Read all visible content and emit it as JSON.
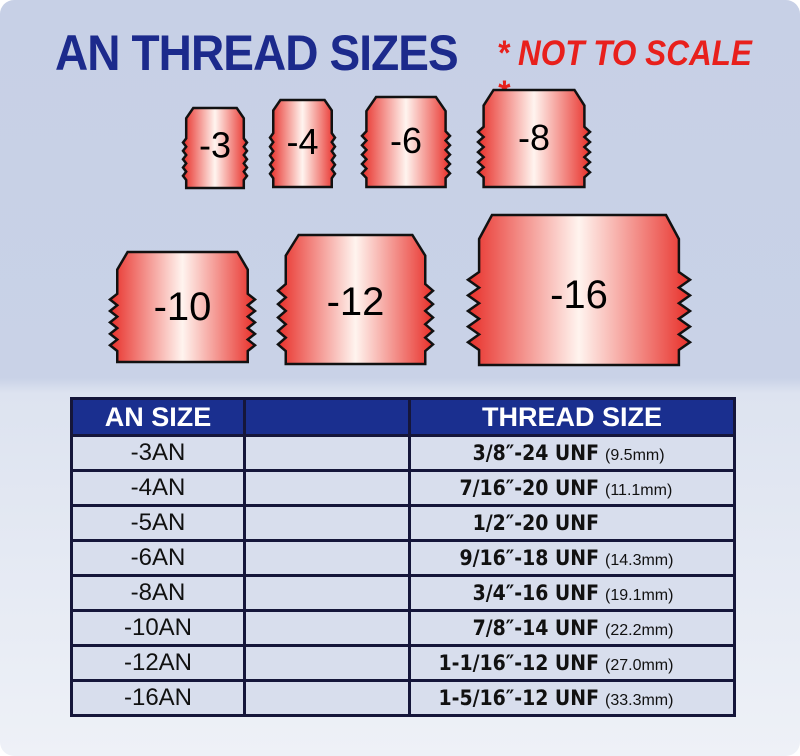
{
  "title": "AN THREAD SIZES",
  "note": "* NOT TO SCALE *",
  "fittings": [
    "-3",
    "-4",
    "-6",
    "-8",
    "-10",
    "-12",
    "-16"
  ],
  "colors": {
    "title": "#1c2a8c",
    "note": "#e8201c",
    "header": "#1a2f8f",
    "fitting_edge": "#e8302a"
  },
  "table": {
    "headers": [
      "AN SIZE",
      "",
      "THREAD SIZE"
    ],
    "rows": [
      {
        "an": "-3AN",
        "thread": "3/8″-24  UNF",
        "mm": "(9.5mm)"
      },
      {
        "an": "-4AN",
        "thread": "7/16″-20 UNF",
        "mm": "(11.1mm)"
      },
      {
        "an": "-5AN",
        "thread": "1/2″-20  UNF",
        "mm": ""
      },
      {
        "an": "-6AN",
        "thread": "9/16″-18 UNF",
        "mm": "(14.3mm)"
      },
      {
        "an": "-8AN",
        "thread": "3/4″-16  UNF",
        "mm": "(19.1mm)"
      },
      {
        "an": "-10AN",
        "thread": "7/8″-14  UNF",
        "mm": "(22.2mm)"
      },
      {
        "an": "-12AN",
        "thread": "1-1/16″-12 UNF",
        "mm": "(27.0mm)"
      },
      {
        "an": "-16AN",
        "thread": "1-5/16″-12 UNF",
        "mm": "(33.3mm)"
      }
    ]
  }
}
